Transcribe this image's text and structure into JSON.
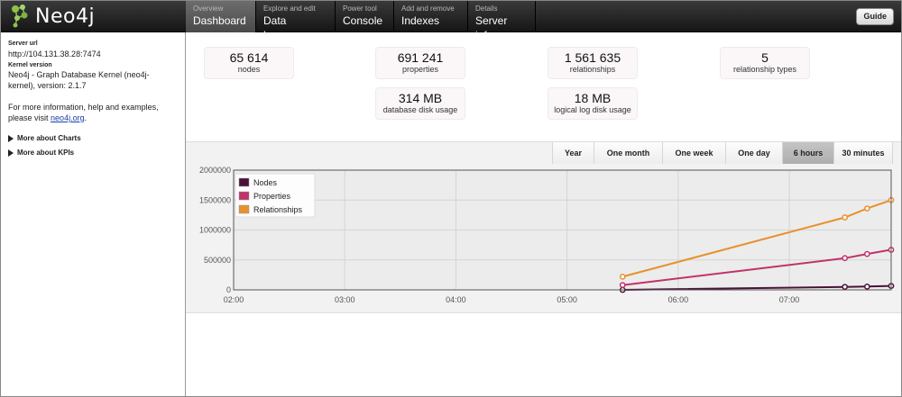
{
  "app": {
    "logo_text": "Neo4j"
  },
  "nav": [
    {
      "sub": "Overview",
      "main": "Dashboard",
      "active": true
    },
    {
      "sub": "Explore and edit",
      "main": "Data browser",
      "active": false
    },
    {
      "sub": "Power tool",
      "main": "Console",
      "active": false
    },
    {
      "sub": "Add and remove",
      "main": "Indexes",
      "active": false
    },
    {
      "sub": "Details",
      "main": "Server info",
      "active": false
    }
  ],
  "guide_label": "Guide",
  "sidebar": {
    "server_url_label": "Server url",
    "server_url": "http://104.131.38.28:7474",
    "kernel_label": "Kernel version",
    "kernel_version": "Neo4j - Graph Database Kernel (neo4j-kernel), version: 2.1.7",
    "info_text": "For more information, help and examples, please visit",
    "info_link": "neo4j.org",
    "info_end": ".",
    "more_charts": "More about Charts",
    "more_kpis": "More about KPIs"
  },
  "kpis": {
    "nodes": {
      "value": "65 614",
      "label": "nodes"
    },
    "properties": {
      "value": "691 241",
      "label": "properties"
    },
    "relationships": {
      "value": "1 561 635",
      "label": "relationships"
    },
    "relationship_types": {
      "value": "5",
      "label": "relationship types"
    },
    "db_disk": {
      "value": "314 MB",
      "label": "database disk usage"
    },
    "log_disk": {
      "value": "18 MB",
      "label": "logical log disk usage"
    }
  },
  "time_ranges": [
    {
      "label": "Year",
      "active": false
    },
    {
      "label": "One month",
      "active": false
    },
    {
      "label": "One week",
      "active": false
    },
    {
      "label": "One day",
      "active": false
    },
    {
      "label": "6 hours",
      "active": true
    },
    {
      "label": "30 minutes",
      "active": false
    }
  ],
  "chart_data": {
    "type": "line",
    "x_ticks": [
      "02:00",
      "03:00",
      "04:00",
      "05:00",
      "06:00",
      "07:00"
    ],
    "y_ticks": [
      "2000000",
      "1500000",
      "1000000",
      "500000",
      "0"
    ],
    "ylim": [
      0,
      2000000
    ],
    "xlim": [
      "02:00",
      "07:55"
    ],
    "grid": true,
    "legend": "top-left",
    "series": [
      {
        "name": "Nodes",
        "color": "#4a1238",
        "points": [
          {
            "x": "05:30",
            "y": 0
          },
          {
            "x": "07:30",
            "y": 50000
          },
          {
            "x": "07:42",
            "y": 55000
          },
          {
            "x": "07:55",
            "y": 65614
          }
        ]
      },
      {
        "name": "Properties",
        "color": "#c0336a",
        "points": [
          {
            "x": "05:30",
            "y": 80000
          },
          {
            "x": "07:30",
            "y": 530000
          },
          {
            "x": "07:42",
            "y": 600000
          },
          {
            "x": "07:55",
            "y": 670000
          }
        ]
      },
      {
        "name": "Relationships",
        "color": "#e8902c",
        "points": [
          {
            "x": "05:30",
            "y": 220000
          },
          {
            "x": "07:30",
            "y": 1210000
          },
          {
            "x": "07:42",
            "y": 1360000
          },
          {
            "x": "07:55",
            "y": 1500000
          }
        ]
      }
    ]
  }
}
